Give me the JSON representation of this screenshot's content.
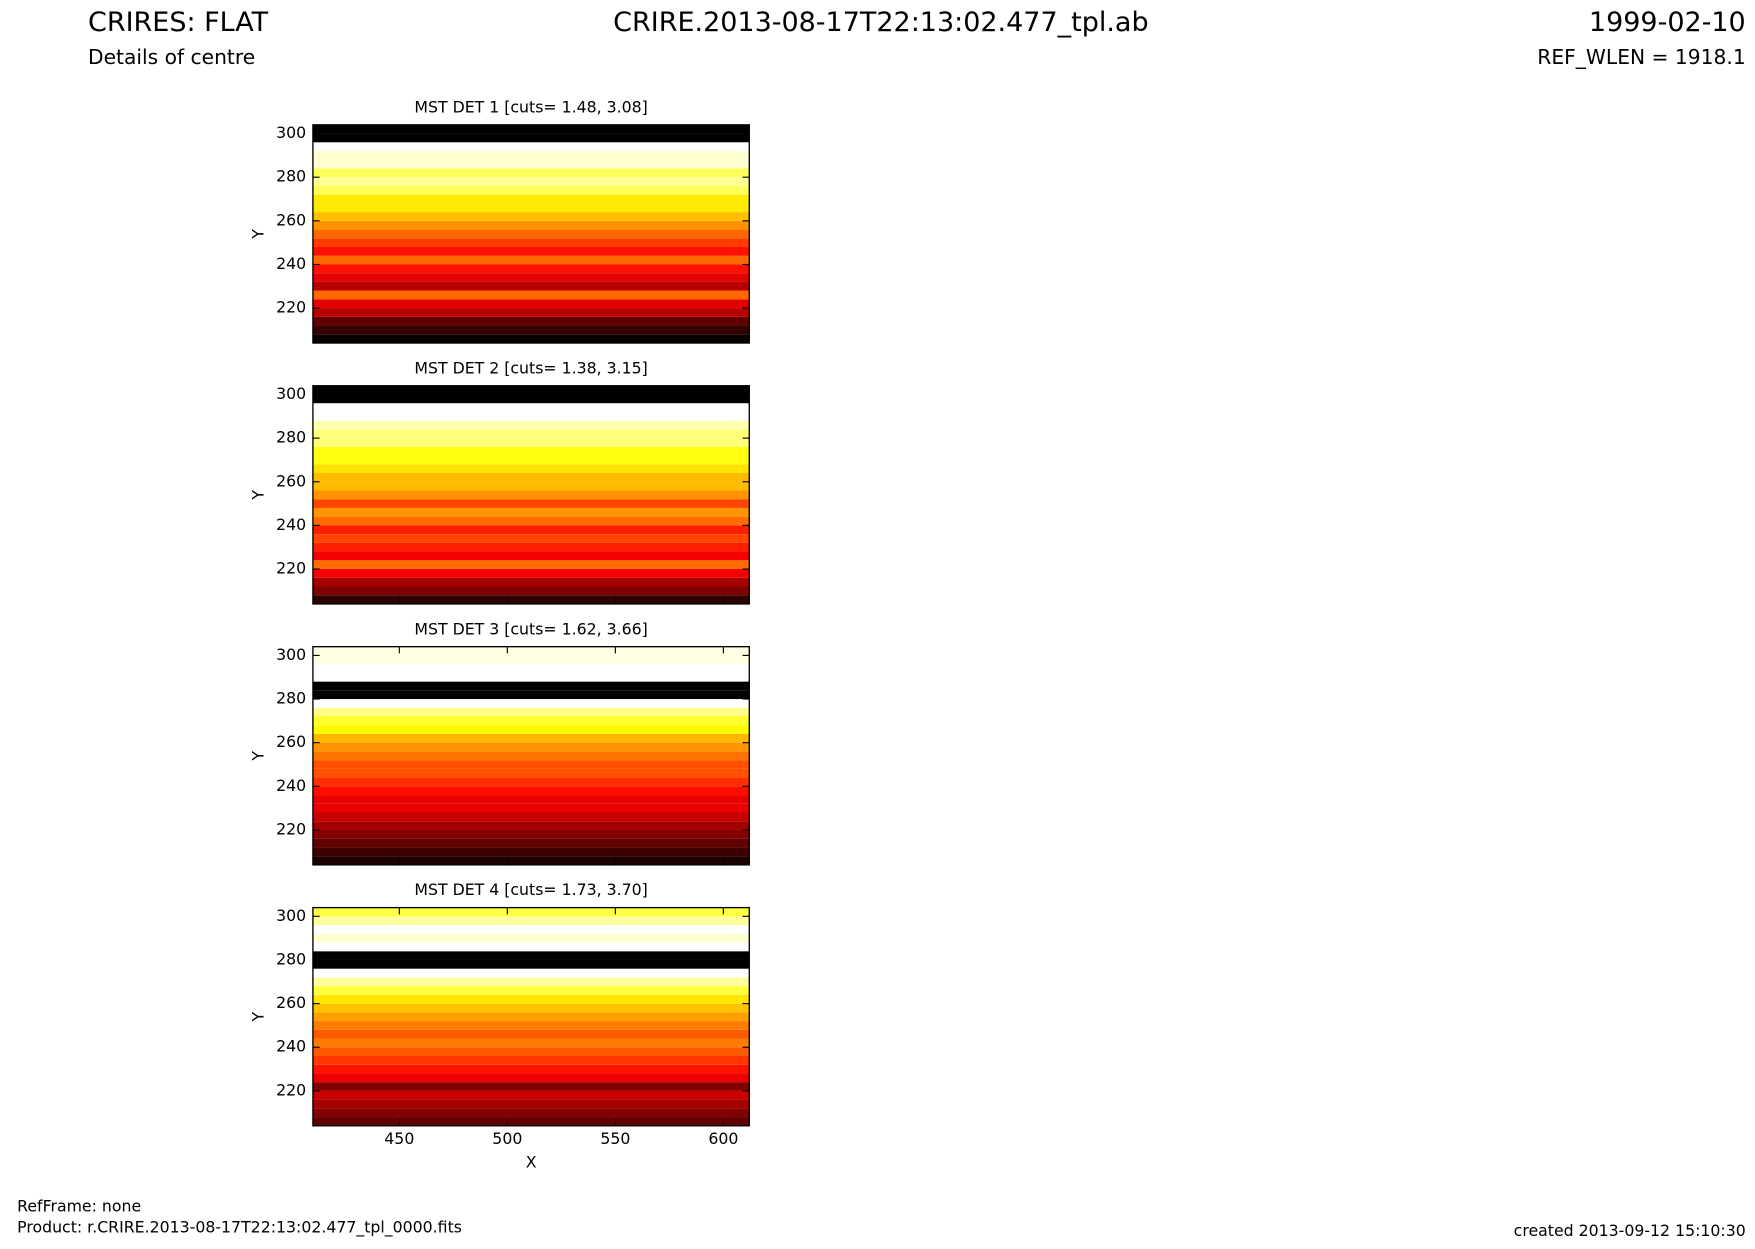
{
  "header": {
    "title": "CRIRES: FLAT",
    "subtitle": "Details of centre",
    "file": "CRIRE.2013-08-17T22:13:02.477_tpl.ab",
    "date": "1999-02-10",
    "ref_wlen": "REF_WLEN = 1918.1"
  },
  "footer": {
    "refframe": "RefFrame: none",
    "product": "Product: r.CRIRE.2013-08-17T22:13:02.477_tpl_0000.fits",
    "created": "created 2013-09-12 15:10:30"
  },
  "chart_data": [
    {
      "type": "heatmap",
      "title": "MST DET 1 [cuts= 1.48, 3.08]",
      "clim": [
        1.48,
        3.08
      ],
      "colormap": "hot",
      "ylabel": "Y",
      "xlim": [
        410,
        612
      ],
      "xticks": [
        450,
        500,
        550,
        600
      ],
      "ylim": [
        204,
        304
      ],
      "yticks": [
        220,
        240,
        260,
        280,
        300
      ],
      "y": [
        206,
        210,
        214,
        218,
        222,
        226,
        230,
        234,
        238,
        242,
        246,
        250,
        254,
        258,
        262,
        266,
        270,
        274,
        278,
        282,
        286,
        290,
        294,
        298,
        302
      ],
      "values": [
        1.5,
        1.6,
        1.7,
        1.9,
        2.0,
        2.3,
        1.9,
        2.0,
        2.1,
        2.3,
        2.1,
        2.2,
        2.3,
        2.4,
        2.5,
        2.6,
        2.6,
        2.8,
        2.9,
        2.8,
        3.0,
        3.0,
        3.1,
        1.3,
        1.3
      ]
    },
    {
      "type": "heatmap",
      "title": "MST DET 2 [cuts= 1.38, 3.15]",
      "clim": [
        1.38,
        3.15
      ],
      "colormap": "hot",
      "ylabel": "Y",
      "xlim": [
        410,
        612
      ],
      "xticks": [
        450,
        500,
        550,
        600
      ],
      "ylim": [
        204,
        304
      ],
      "yticks": [
        220,
        240,
        260,
        280,
        300
      ],
      "y": [
        206,
        210,
        214,
        218,
        222,
        226,
        230,
        234,
        238,
        242,
        246,
        250,
        254,
        258,
        262,
        266,
        270,
        274,
        278,
        282,
        286,
        290,
        294,
        298,
        302
      ],
      "values": [
        1.5,
        1.7,
        1.8,
        2.0,
        2.3,
        2.0,
        2.1,
        2.2,
        2.1,
        2.3,
        2.4,
        2.2,
        2.4,
        2.5,
        2.5,
        2.6,
        2.7,
        2.7,
        2.9,
        2.9,
        3.0,
        3.2,
        3.2,
        1.2,
        1.2
      ]
    },
    {
      "type": "heatmap",
      "title": "MST DET 3 [cuts= 1.62, 3.66]",
      "clim": [
        1.62,
        3.66
      ],
      "colormap": "hot",
      "ylabel": "Y",
      "xlim": [
        410,
        612
      ],
      "xticks": [
        450,
        500,
        550,
        600
      ],
      "ylim": [
        204,
        304
      ],
      "yticks": [
        220,
        240,
        260,
        280,
        300
      ],
      "y": [
        206,
        210,
        214,
        218,
        222,
        226,
        230,
        234,
        238,
        242,
        246,
        250,
        254,
        258,
        262,
        266,
        270,
        274,
        278,
        282,
        286,
        290,
        294,
        298,
        302
      ],
      "values": [
        1.7,
        1.8,
        1.9,
        2.0,
        2.1,
        2.2,
        2.3,
        2.3,
        2.4,
        2.5,
        2.6,
        2.6,
        2.7,
        2.8,
        2.9,
        3.1,
        3.2,
        3.4,
        3.7,
        1.5,
        1.5,
        3.8,
        3.8,
        3.6,
        3.6
      ]
    },
    {
      "type": "heatmap",
      "title": "MST DET 4 [cuts= 1.73, 3.70]",
      "clim": [
        1.73,
        3.7
      ],
      "colormap": "hot",
      "ylabel": "Y",
      "xlabel": "X",
      "xlim": [
        410,
        612
      ],
      "xticks": [
        450,
        500,
        550,
        600
      ],
      "ylim": [
        204,
        304
      ],
      "yticks": [
        220,
        240,
        260,
        280,
        300
      ],
      "y": [
        206,
        210,
        214,
        218,
        222,
        226,
        230,
        234,
        238,
        242,
        246,
        250,
        254,
        258,
        262,
        266,
        270,
        274,
        278,
        282,
        286,
        290,
        294,
        298,
        302
      ],
      "values": [
        2.0,
        2.1,
        2.2,
        2.3,
        2.1,
        2.4,
        2.5,
        2.6,
        2.7,
        2.8,
        2.7,
        2.8,
        2.9,
        3.0,
        3.1,
        3.3,
        3.5,
        3.8,
        1.5,
        1.5,
        3.8,
        3.6,
        3.7,
        3.5,
        3.3
      ]
    }
  ]
}
